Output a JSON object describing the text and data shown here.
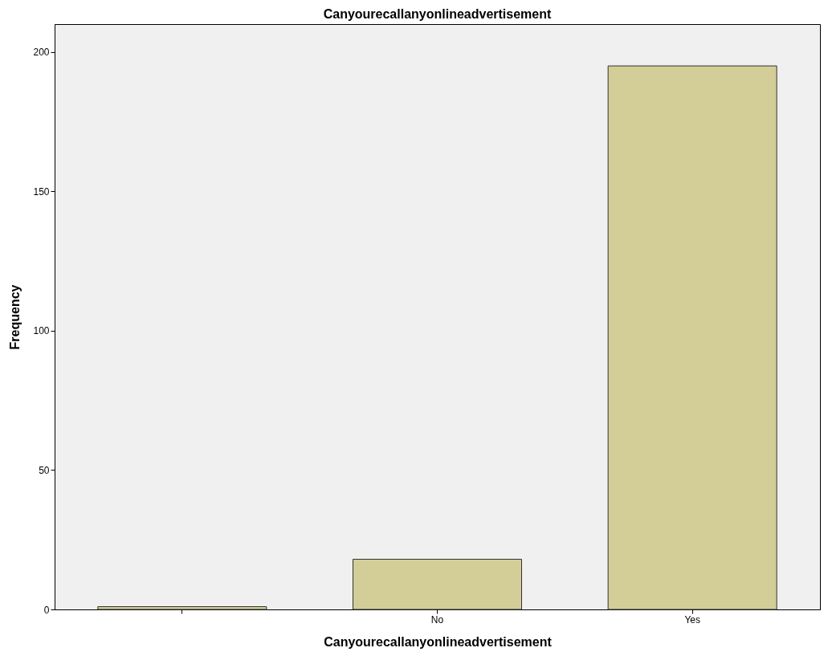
{
  "chart_data": {
    "type": "bar",
    "title": "Canyourecallanyonlineadvertisement",
    "xlabel": "Canyourecallanyonlineadvertisement",
    "ylabel": "Frequency",
    "categories": [
      null,
      "No",
      "Yes"
    ],
    "values": [
      1,
      18,
      195
    ],
    "color": "#d3ce97",
    "ylim": [
      0,
      210
    ],
    "yticks": [
      0,
      50,
      100,
      150,
      200
    ],
    "grid": false
  }
}
